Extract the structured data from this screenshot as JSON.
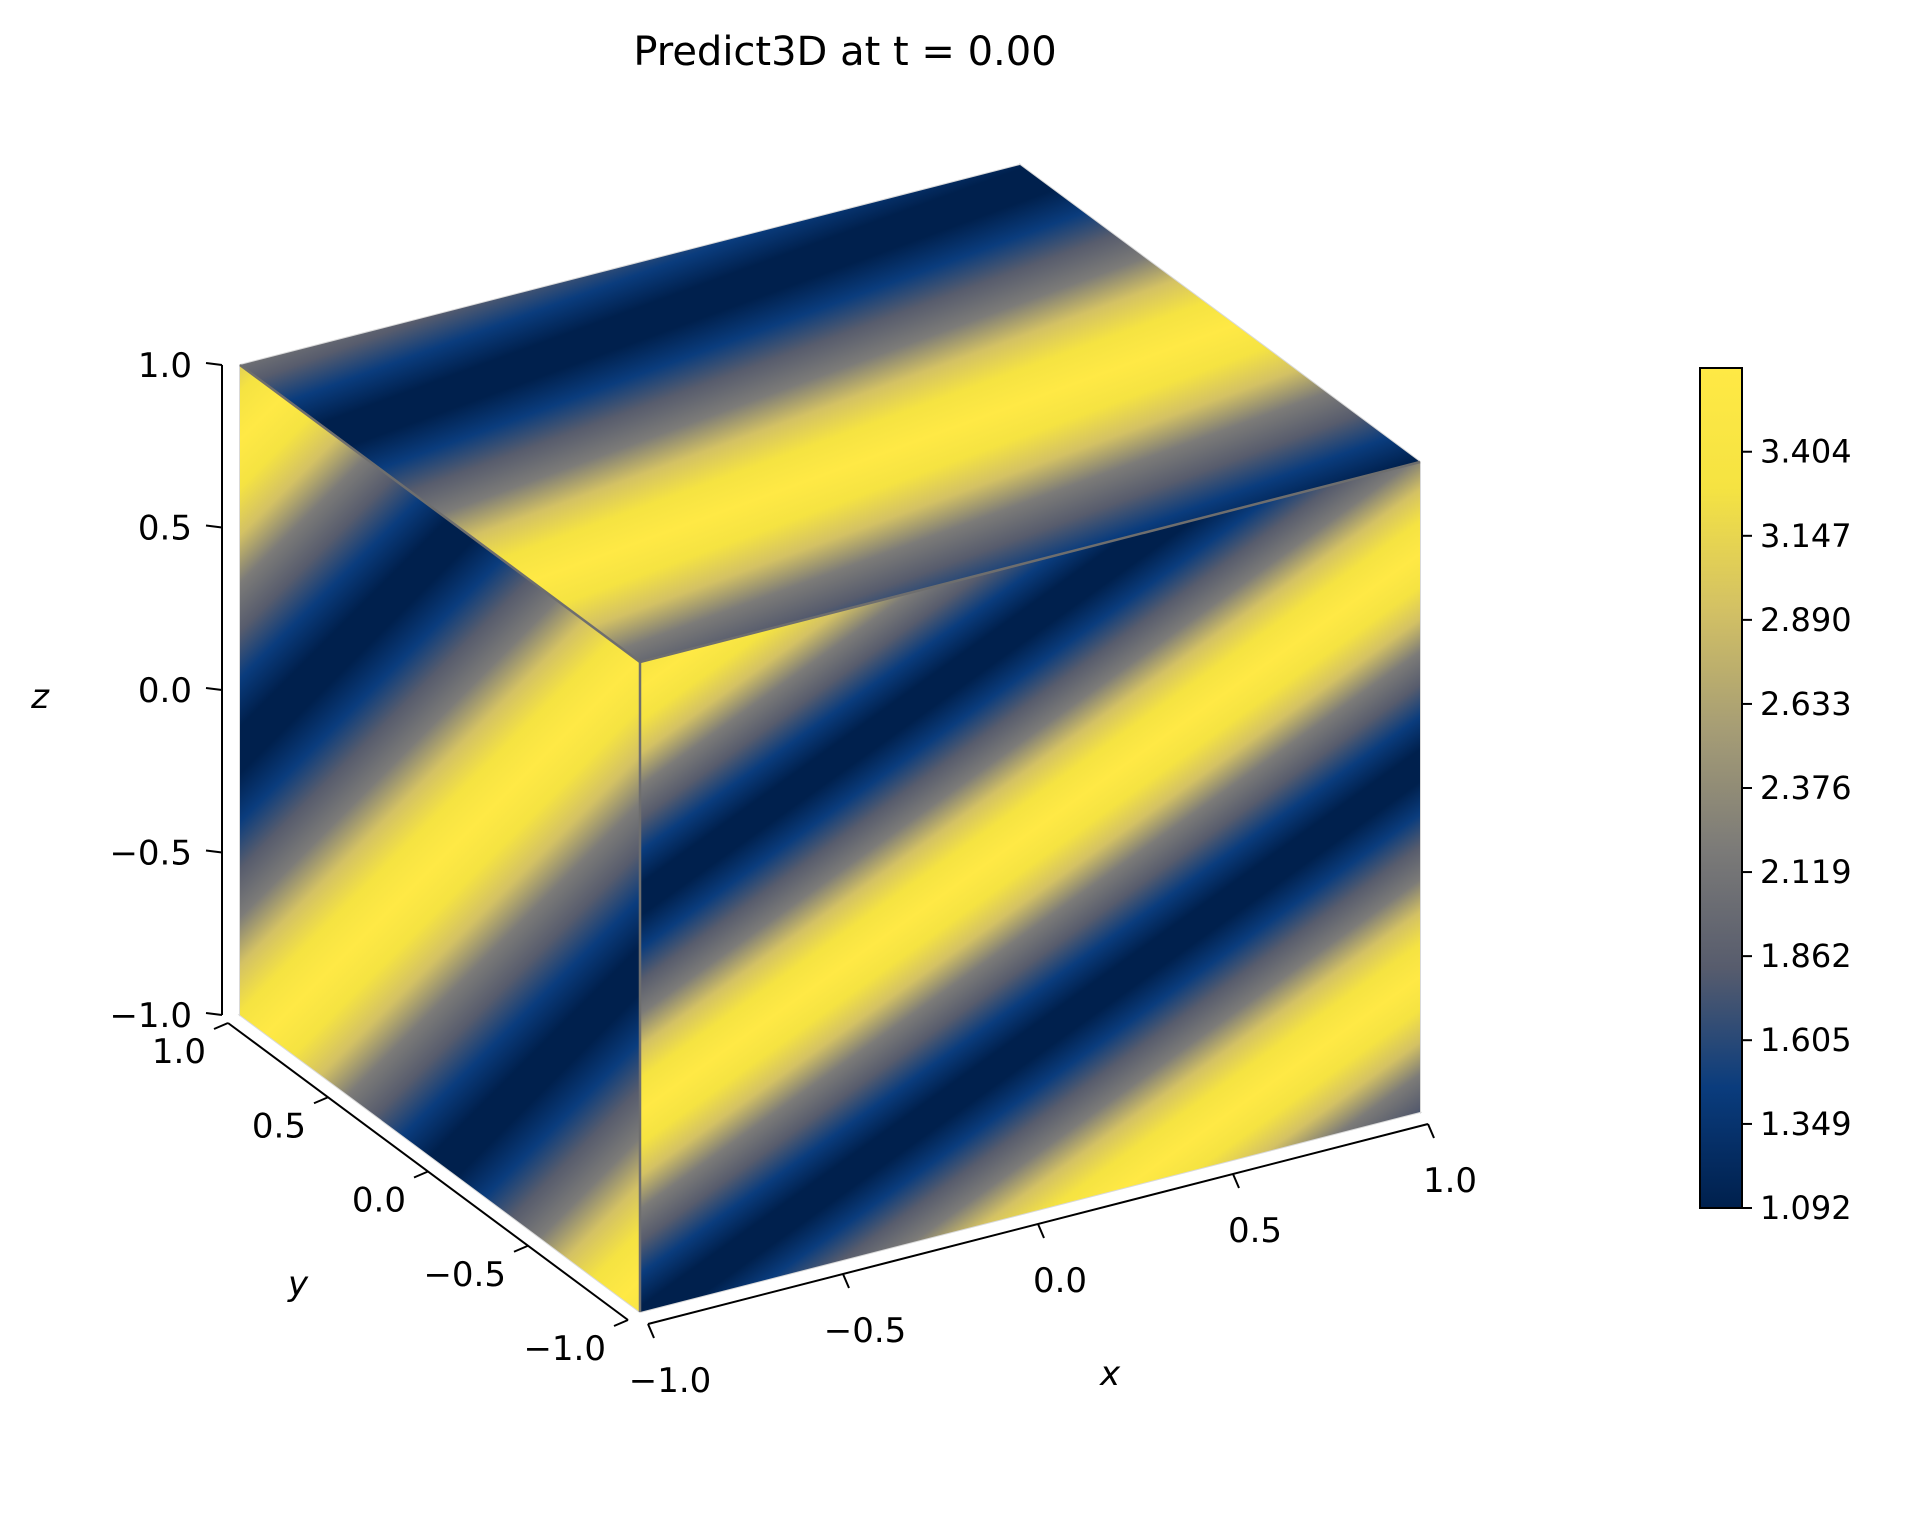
{
  "chart_data": {
    "type": "heatmap",
    "title": "Predict3D at t = 0.00",
    "xlabel": "x",
    "ylabel": "y",
    "zlabel": "z",
    "xlim": [
      -1.0,
      1.0
    ],
    "ylim": [
      -1.0,
      1.0
    ],
    "zlim": [
      -1.0,
      1.0
    ],
    "x_ticks": [
      "−1.0",
      "−0.5",
      "0.0",
      "0.5",
      "1.0"
    ],
    "y_ticks": [
      "−1.0",
      "−0.5",
      "0.0",
      "0.5",
      "1.0"
    ],
    "z_ticks": [
      "−1.0",
      "−0.5",
      "0.0",
      "0.5",
      "1.0"
    ],
    "colormap": "cividis",
    "colormap_colors": [
      "#00204d",
      "#0a3c7d",
      "#575c6d",
      "#7c7b78",
      "#a69d75",
      "#d3c164",
      "#f5e342",
      "#ffe945"
    ],
    "colorbar": {
      "range": [
        1.092,
        3.66
      ],
      "ticks": [
        1.092,
        1.349,
        1.605,
        1.862,
        2.119,
        2.376,
        2.633,
        2.89,
        3.147,
        3.404
      ],
      "tick_labels": [
        "1.092",
        "1.349",
        "1.605",
        "1.862",
        "2.119",
        "2.376",
        "2.633",
        "2.890",
        "3.147",
        "3.404"
      ]
    },
    "surface": "banded field on cube faces, value cycles between 1.092 and 3.66",
    "grid": true,
    "view": "3d-cube"
  }
}
